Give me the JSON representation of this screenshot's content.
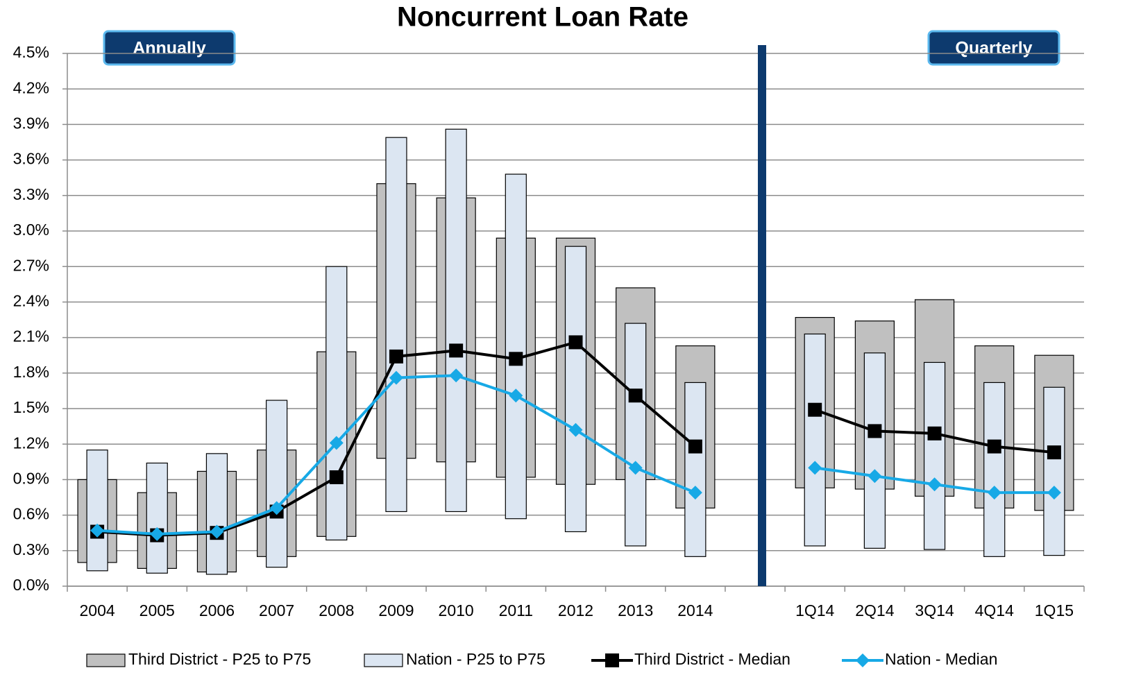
{
  "chart_data": {
    "type": "combo",
    "title": "Noncurrent Loan Rate",
    "annotations": [
      "Annually",
      "Quarterly"
    ],
    "categories": [
      "2004",
      "2005",
      "2006",
      "2007",
      "2008",
      "2009",
      "2010",
      "2011",
      "2012",
      "2013",
      "2014",
      null,
      "1Q14",
      "2Q14",
      "3Q14",
      "4Q14",
      "1Q15"
    ],
    "ylim": [
      0,
      4.5
    ],
    "yticks": [
      {
        "value": 0,
        "label": "0.0%"
      },
      {
        "value": 0.3,
        "label": "0.3%"
      },
      {
        "value": 0.6,
        "label": "0.6%"
      },
      {
        "value": 0.9,
        "label": "0.9%"
      },
      {
        "value": 1.2,
        "label": "1.2%"
      },
      {
        "value": 1.5,
        "label": "1.5%"
      },
      {
        "value": 1.8,
        "label": "1.8%"
      },
      {
        "value": 2.1,
        "label": "2.1%"
      },
      {
        "value": 2.4,
        "label": "2.4%"
      },
      {
        "value": 2.7,
        "label": "2.7%"
      },
      {
        "value": 3.0,
        "label": "3.0%"
      },
      {
        "value": 3.3,
        "label": "3.3%"
      },
      {
        "value": 3.6,
        "label": "3.6%"
      },
      {
        "value": 3.9,
        "label": "3.9%"
      },
      {
        "value": 4.2,
        "label": "4.2%"
      },
      {
        "value": 4.5,
        "label": "4.5%"
      }
    ],
    "grid": true,
    "legend": "bottom",
    "series": [
      {
        "name": "Third District - P25 to P75",
        "type": "range",
        "color": "#c0c0c0",
        "low": [
          0.2,
          0.15,
          0.12,
          0.25,
          0.42,
          1.08,
          1.05,
          0.92,
          0.86,
          0.9,
          0.66,
          null,
          0.83,
          0.82,
          0.76,
          0.66,
          0.64
        ],
        "high": [
          0.9,
          0.79,
          0.97,
          1.15,
          1.98,
          3.4,
          3.28,
          2.94,
          2.94,
          2.52,
          2.03,
          null,
          2.27,
          2.24,
          2.42,
          2.03,
          1.95
        ]
      },
      {
        "name": "Nation - P25 to P75",
        "type": "range",
        "color": "#dce6f2",
        "low": [
          0.13,
          0.11,
          0.1,
          0.16,
          0.39,
          0.63,
          0.63,
          0.57,
          0.46,
          0.34,
          0.25,
          null,
          0.34,
          0.32,
          0.31,
          0.25,
          0.26
        ],
        "high": [
          1.15,
          1.04,
          1.12,
          1.57,
          2.7,
          3.79,
          3.86,
          3.48,
          2.87,
          2.22,
          1.72,
          null,
          2.13,
          1.97,
          1.89,
          1.72,
          1.68
        ]
      },
      {
        "name": "Third District - Median",
        "type": "line",
        "marker": "square",
        "color": "#000000",
        "values": [
          0.46,
          0.43,
          0.45,
          0.63,
          0.92,
          1.94,
          1.99,
          1.92,
          2.06,
          1.61,
          1.18,
          null,
          1.49,
          1.31,
          1.29,
          1.18,
          1.13
        ]
      },
      {
        "name": "Nation - Median",
        "type": "line",
        "marker": "diamond",
        "color": "#17a9e6",
        "values": [
          0.47,
          0.44,
          0.46,
          0.66,
          1.21,
          1.76,
          1.78,
          1.61,
          1.32,
          1.0,
          0.79,
          null,
          1.0,
          0.93,
          0.86,
          0.79,
          0.79
        ]
      }
    ]
  }
}
